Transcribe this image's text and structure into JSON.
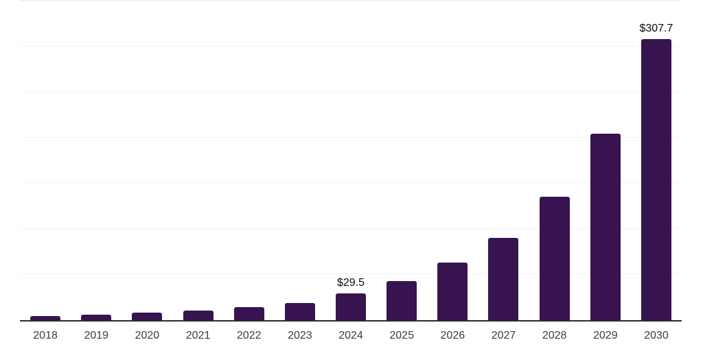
{
  "chart_data": {
    "type": "bar",
    "title": "",
    "xlabel": "",
    "ylabel": "",
    "categories": [
      "2018",
      "2019",
      "2020",
      "2021",
      "2022",
      "2023",
      "2024",
      "2025",
      "2026",
      "2027",
      "2028",
      "2029",
      "2030"
    ],
    "values": [
      4.5,
      5.8,
      8.4,
      10.3,
      14.0,
      19.0,
      29.5,
      42.7,
      62.9,
      90.2,
      135.1,
      204.5,
      307.7
    ],
    "value_labels": [
      "",
      "",
      "",
      "",
      "",
      "",
      "$29.5",
      "",
      "",
      "",
      "",
      "",
      "$307.7"
    ],
    "ylim": [
      0,
      350
    ],
    "yticks": [
      0,
      50,
      100,
      150,
      200,
      250,
      300,
      350
    ],
    "y_tick_labels_shown": false,
    "grid": "horizontal",
    "legend": "none",
    "bar_color": "#371450"
  },
  "colors": {
    "background": "#ffffff",
    "bar": "#371450",
    "axis_line": "#2b2b2b",
    "gridline": "#f2f2f2",
    "top_gridline": "#eaeaea",
    "tick_label": "#3d3d3d",
    "value_label": "#0a0a0a"
  }
}
